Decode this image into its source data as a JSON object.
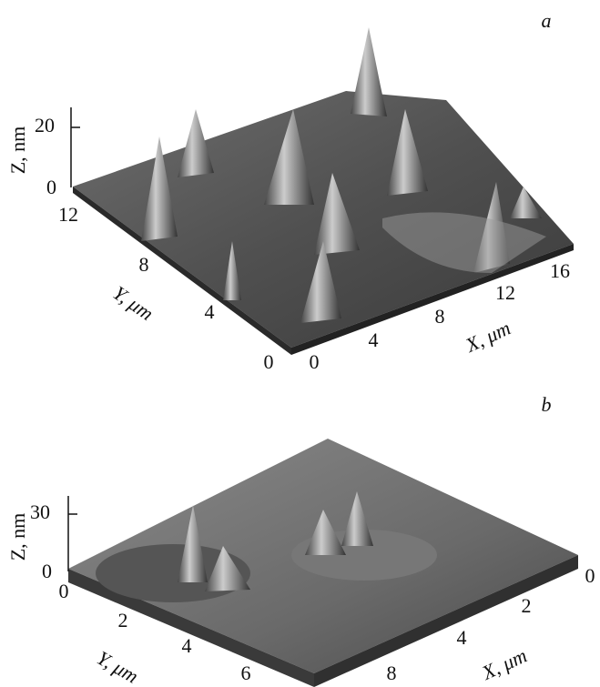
{
  "panels": [
    {
      "label": "a",
      "z_axis": {
        "title": "Z, nm",
        "ticks": [
          "20",
          "0"
        ]
      },
      "y_axis": {
        "title": "Y, μm",
        "ticks": [
          "12",
          "8",
          "4",
          "0"
        ]
      },
      "x_axis": {
        "title": "X, μm",
        "ticks": [
          "0",
          "4",
          "8",
          "12",
          "16"
        ]
      }
    },
    {
      "label": "b",
      "z_axis": {
        "title": "Z, nm",
        "ticks": [
          "30",
          "0"
        ]
      },
      "y_axis": {
        "title": "Y, μm",
        "ticks": [
          "0",
          "2",
          "4",
          "6"
        ]
      },
      "x_axis": {
        "title": "X, μm",
        "ticks": [
          "0",
          "2",
          "4",
          "8"
        ]
      }
    }
  ]
}
